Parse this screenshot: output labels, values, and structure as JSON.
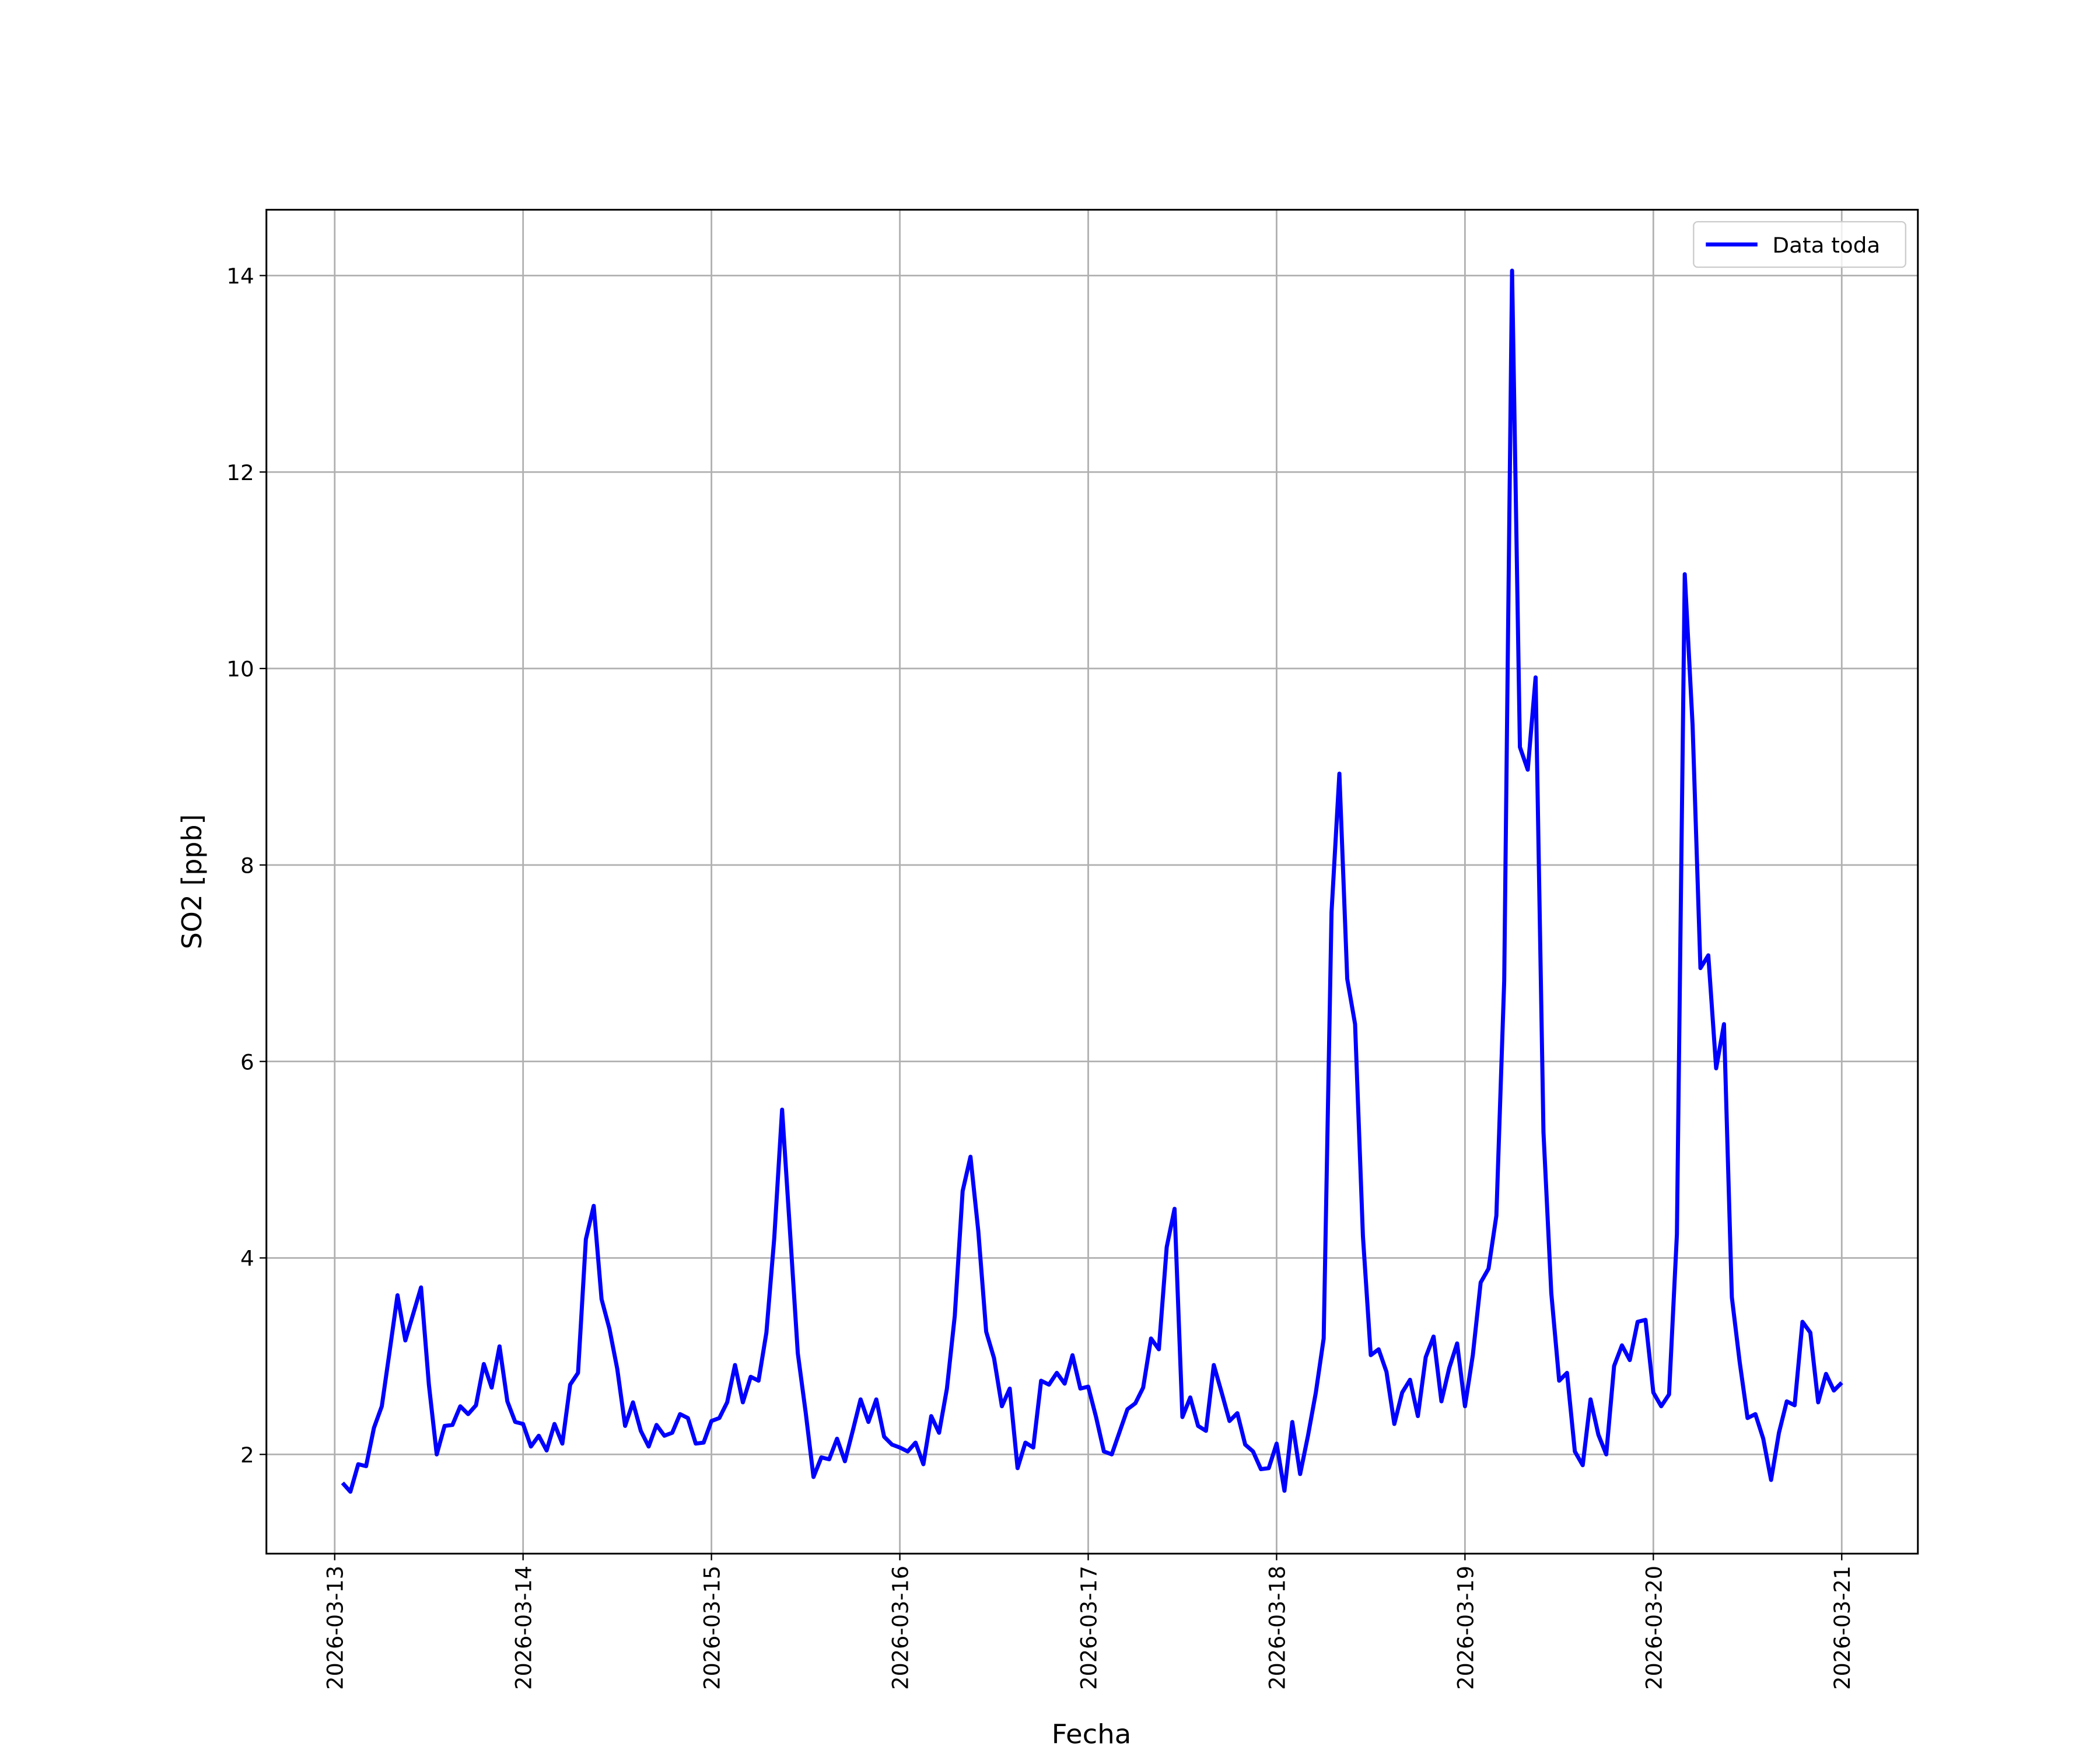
{
  "chart_data": {
    "type": "line",
    "x_label": "Fecha",
    "y_label": "SO2 [ppb]",
    "x": [
      1,
      2,
      3,
      4,
      5,
      6,
      7,
      8,
      9,
      10,
      11,
      12,
      13,
      14,
      15,
      16,
      17,
      18,
      19,
      20,
      21,
      22,
      23,
      24,
      25,
      26,
      27,
      28,
      29,
      30,
      31,
      32,
      33,
      34,
      35,
      36,
      37,
      38,
      39,
      40,
      41,
      42,
      43,
      44,
      45,
      46,
      47,
      48,
      49,
      50,
      51,
      52,
      53,
      54,
      55,
      56,
      57,
      58,
      59,
      60,
      61,
      62,
      63,
      64,
      65,
      66,
      67,
      68,
      69,
      70,
      71,
      72,
      73,
      74,
      75,
      76,
      77,
      78,
      79,
      80,
      81,
      82,
      83,
      84,
      85,
      86,
      87,
      88,
      89,
      90,
      91,
      92,
      93,
      94,
      95,
      96,
      97,
      98,
      99,
      100,
      101,
      102,
      103,
      104,
      105,
      106,
      107,
      108,
      109,
      110,
      111,
      112,
      113,
      114,
      115,
      116,
      117,
      118,
      119,
      120,
      121,
      122,
      123,
      124,
      125,
      126,
      127,
      128,
      129,
      130,
      131,
      132,
      133,
      134,
      135,
      136,
      137,
      138,
      139,
      140,
      141,
      142,
      143,
      144,
      145,
      146,
      147,
      148,
      149,
      150,
      151,
      152,
      153,
      154,
      155,
      156,
      157,
      158,
      159,
      160,
      161,
      162,
      163,
      164,
      165,
      166,
      167,
      168,
      169,
      170,
      171,
      172,
      173,
      174,
      175,
      176,
      177,
      178,
      179,
      180,
      181,
      182,
      183,
      184,
      185,
      186,
      187,
      188,
      189,
      190,
      191,
      192
    ],
    "series": [
      {
        "name": "Data toda",
        "color": "#0000ff",
        "values": [
          1.71,
          1.62,
          1.9,
          1.88,
          2.27,
          2.49,
          3.05,
          3.62,
          3.16,
          3.43,
          3.7,
          2.71,
          2.0,
          2.29,
          2.3,
          2.49,
          2.41,
          2.5,
          2.92,
          2.68,
          3.1,
          2.54,
          2.33,
          2.31,
          2.08,
          2.19,
          2.04,
          2.31,
          2.11,
          2.71,
          2.83,
          4.19,
          4.53,
          3.58,
          3.28,
          2.87,
          2.29,
          2.53,
          2.24,
          2.08,
          2.3,
          2.19,
          2.22,
          2.41,
          2.37,
          2.11,
          2.12,
          2.34,
          2.37,
          2.53,
          2.91,
          2.53,
          2.79,
          2.75,
          3.24,
          4.2,
          5.51,
          4.28,
          3.03,
          2.43,
          1.77,
          1.97,
          1.95,
          2.16,
          1.93,
          2.24,
          2.56,
          2.33,
          2.56,
          2.18,
          2.1,
          2.07,
          2.03,
          2.12,
          1.9,
          2.39,
          2.22,
          2.67,
          3.41,
          4.68,
          5.03,
          4.27,
          3.25,
          2.98,
          2.49,
          2.67,
          1.86,
          2.12,
          2.07,
          2.75,
          2.71,
          2.83,
          2.72,
          3.01,
          2.67,
          2.69,
          2.38,
          2.03,
          2.0,
          2.23,
          2.46,
          2.52,
          2.68,
          3.18,
          3.07,
          4.11,
          4.5,
          2.38,
          2.58,
          2.29,
          2.24,
          2.91,
          2.63,
          2.34,
          2.42,
          2.1,
          2.03,
          1.85,
          1.86,
          2.11,
          1.63,
          2.33,
          1.8,
          2.19,
          2.63,
          3.18,
          7.52,
          8.93,
          6.84,
          6.38,
          4.22,
          3.01,
          3.07,
          2.84,
          2.31,
          2.63,
          2.76,
          2.39,
          2.99,
          3.2,
          2.54,
          2.88,
          3.13,
          2.49,
          3.01,
          3.75,
          3.89,
          4.43,
          6.82,
          14.05,
          9.2,
          8.97,
          9.91,
          5.28,
          3.64,
          2.75,
          2.83,
          2.03,
          1.89,
          2.56,
          2.2,
          2.0,
          2.9,
          3.11,
          2.96,
          3.35,
          3.37,
          2.63,
          2.49,
          2.61,
          4.24,
          10.96,
          9.42,
          6.95,
          7.08,
          5.93,
          6.38,
          3.6,
          2.94,
          2.37,
          2.41,
          2.16,
          1.74,
          2.22,
          2.54,
          2.5,
          3.35,
          3.24,
          2.53,
          2.82,
          2.65,
          2.73
        ]
      }
    ],
    "xlim": [
      -8.7,
      201.7
    ],
    "xticks": [
      {
        "value": 0,
        "label": "2026-03-13"
      },
      {
        "value": 24,
        "label": "2026-03-14"
      },
      {
        "value": 48,
        "label": "2026-03-15"
      },
      {
        "value": 72,
        "label": "2026-03-16"
      },
      {
        "value": 96,
        "label": "2026-03-17"
      },
      {
        "value": 120,
        "label": "2026-03-18"
      },
      {
        "value": 144,
        "label": "2026-03-19"
      },
      {
        "value": 168,
        "label": "2026-03-20"
      },
      {
        "value": 192,
        "label": "2026-03-21"
      }
    ],
    "ylim": [
      0.99,
      14.67
    ],
    "yticks": [
      2,
      4,
      6,
      8,
      10,
      12,
      14
    ],
    "grid": true,
    "legend": "upper right"
  }
}
